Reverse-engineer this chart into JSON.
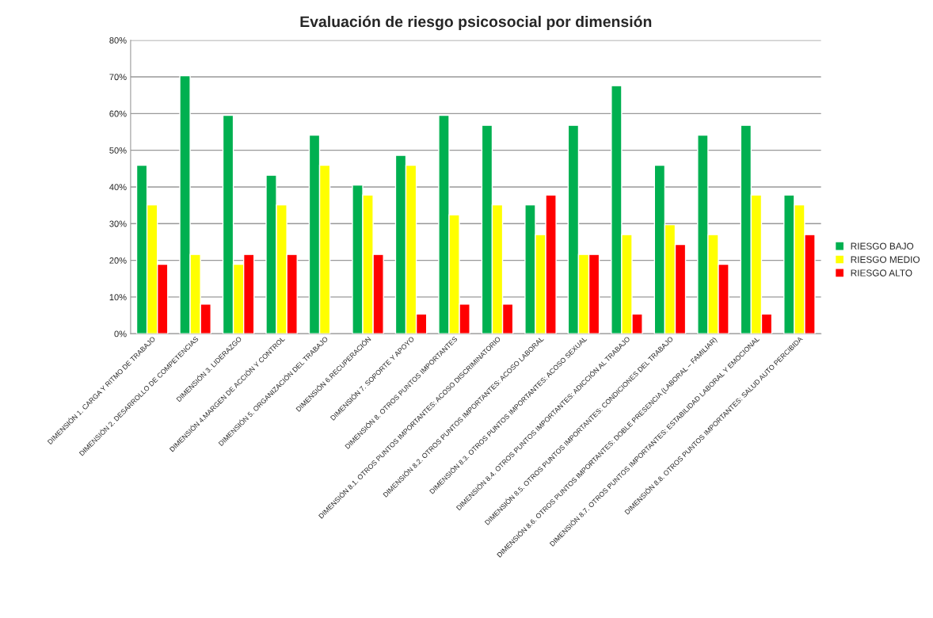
{
  "chart_data": {
    "type": "bar",
    "title": "Evaluación de riesgo psicosocial por dimensión",
    "categories": [
      "DIMENSIÓN 1. CARGA Y RITMO DE TRABAJO",
      "DIMENSIÓN 2. DESARROLLO DE COMPETENCIAS",
      "DIMENSIÓN 3. LIDERAZGO",
      "DIMENSIÓN 4.MARGEN DE ACCIÓN Y CONTROL",
      "DIMENSIÓN 5. ORGANIZACIÓN DEL TRABAJO",
      "DIMENSIÓN 6.RECUPERACIÓN",
      "DIMENSIÓN 7. SOPORTE Y APOYO",
      "DIMENSIÓN 8. OTROS PUNTOS IMPORTANTES",
      "DIMENSIÓN 8.1. OTROS PUNTOS IMPORTANTES: ACOSO DISCRIMINATORIO",
      "DIMENSIÓN 8.2. OTROS PUNTOS IMPORTANTES: ACOSO LABORAL",
      "DIMENSIÓN 8.3. OTROS PUNTOS IMPORTANTES: ACOSO SEXUAL",
      "DIMENSIÓN 8.4. OTROS PUNTOS IMPORTANTES: ADICCIÓN AL TRABAJO",
      "DIMENSIÓN 8.5. OTROS PUNTOS IMPORTANTES: CONDICIONES DEL TRABAJO",
      "DIMENSIÓN 8.6. OTROS PUNTOS IMPORTANTES: DOBLE PRESENCIA (LABORAL – FAMILIAR)",
      "DIMENSIÓN 8.7. OTROS PUNTOS IMPORTANTES: ESTABILIDAD LABORAL Y EMOCIONAL",
      "DIMENSIÓN 8.8. OTROS PUNTOS IMPORTANTES: SALUD AUTO PERCIBIDA"
    ],
    "series": [
      {
        "name": "RIESGO BAJO",
        "color": "#00b050",
        "values": [
          45.9,
          70.3,
          59.5,
          43.2,
          54.1,
          40.5,
          48.6,
          59.5,
          56.8,
          35.1,
          56.8,
          67.6,
          45.9,
          54.1,
          56.8,
          37.8
        ]
      },
      {
        "name": "RIESGO MEDIO",
        "color": "#ffff00",
        "values": [
          35.1,
          21.6,
          18.9,
          35.1,
          45.9,
          37.8,
          45.9,
          32.4,
          35.1,
          27.0,
          21.6,
          27.0,
          29.7,
          27.0,
          37.8,
          35.1
        ]
      },
      {
        "name": "RIESGO ALTO",
        "color": "#ff0000",
        "values": [
          18.9,
          8.1,
          21.6,
          21.6,
          null,
          21.6,
          5.4,
          8.1,
          8.1,
          37.8,
          21.6,
          5.4,
          24.3,
          18.9,
          5.4,
          27.0
        ]
      }
    ],
    "ylim": [
      0,
      80
    ],
    "yticks": [
      {
        "value": 0,
        "label": "0%"
      },
      {
        "value": 10,
        "label": "10%"
      },
      {
        "value": 20,
        "label": "20%"
      },
      {
        "value": 30,
        "label": "30%"
      },
      {
        "value": 40,
        "label": "40%"
      },
      {
        "value": 50,
        "label": "50%"
      },
      {
        "value": 60,
        "label": "60%"
      },
      {
        "value": 70,
        "label": "70%"
      },
      {
        "value": 80,
        "label": "80%"
      }
    ],
    "grid": "y",
    "legend": "right"
  }
}
